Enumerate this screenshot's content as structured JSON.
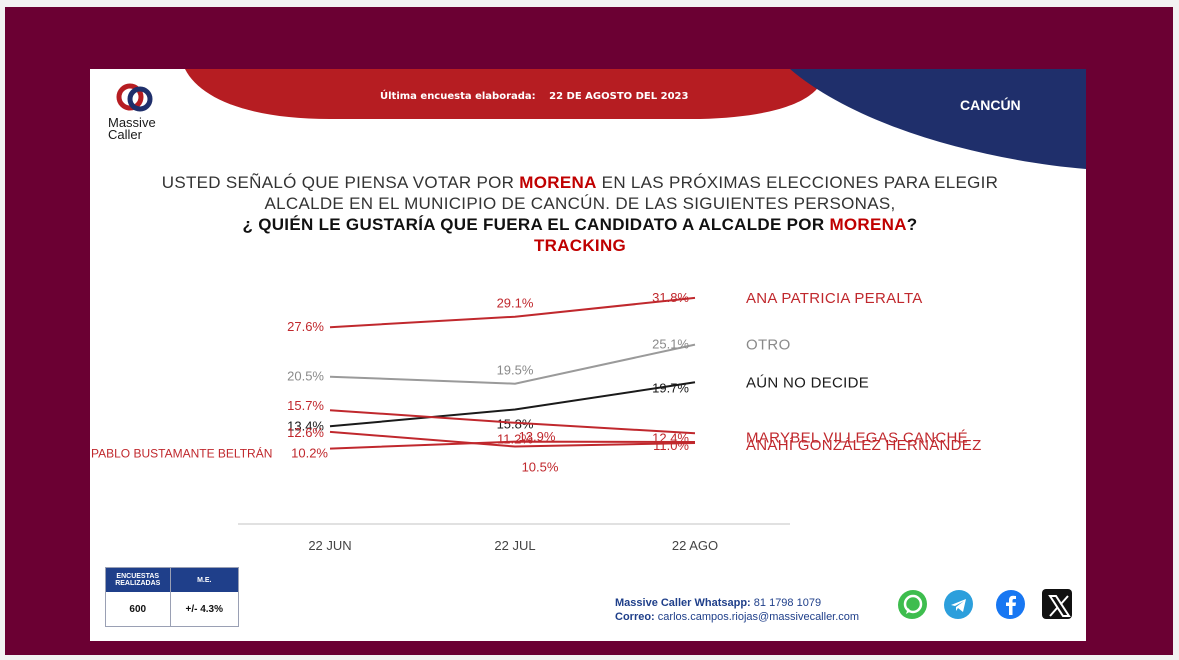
{
  "header": {
    "brand_line1": "Massive",
    "brand_line2": "Caller",
    "survey_label": "Última encuesta elaborada:",
    "survey_date": "22 DE AGOSTO DEL 2023",
    "city": "CANCÚN"
  },
  "question": {
    "line1_pre": "USTED SEÑALÓ QUE PIENSA VOTAR POR ",
    "party": "MORENA",
    "line1_post": " EN LAS PRÓXIMAS ELECCIONES PARA ELEGIR",
    "line2": "ALCALDE EN EL MUNICIPIO DE CANCÚN. DE LAS SIGUIENTES PERSONAS,",
    "line3_pre": "¿ QUIÉN LE GUSTARÍA QUE FUERA EL CANDIDATO A ALCALDE POR ",
    "line3_post": "?",
    "subtitle": "TRACKING"
  },
  "chart_data": {
    "type": "line",
    "categories": [
      "22 JUN",
      "22 JUL",
      "22 AGO"
    ],
    "series": [
      {
        "name": "ANA PATRICIA PERALTA",
        "values": [
          27.6,
          29.1,
          31.8
        ],
        "labels": [
          "27.6%",
          "29.1%",
          "31.8%"
        ],
        "color": "#c0282d"
      },
      {
        "name": "OTRO",
        "values": [
          20.5,
          19.5,
          25.1
        ],
        "labels": [
          "20.5%",
          "19.5%",
          "25.1%"
        ],
        "color": "#9a9a9a"
      },
      {
        "name": "AÚN NO DECIDE",
        "values": [
          13.4,
          15.8,
          19.7
        ],
        "labels": [
          "13.4%",
          "15.8%",
          "19.7%"
        ],
        "color": "#1a1a1a"
      },
      {
        "name": "MARYBEL VILLEGAS CANCHÉ",
        "values": [
          15.7,
          13.9,
          12.4
        ],
        "labels": [
          "15.7%",
          "13.9%",
          "12.4%"
        ],
        "color": "#c0282d"
      },
      {
        "name": "ANAHÍ GONZÁLEZ HERNÁNDEZ",
        "values": [
          12.6,
          10.5,
          11.0
        ],
        "labels": [
          "12.6%",
          "10.5%",
          "11.0%"
        ],
        "color": "#c0282d"
      },
      {
        "name": "PABLO BUSTAMANTE BELTRÁN",
        "values": [
          10.2,
          11.2,
          null
        ],
        "labels": [
          "10.2%",
          "11.2%",
          ""
        ],
        "color": "#c0282d"
      }
    ],
    "ylim": [
      9,
      32.5
    ]
  },
  "footer": {
    "surveys_header": "ENCUESTAS REALIZADAS",
    "me_header": "M.E.",
    "surveys_value": "600",
    "me_value": "+/- 4.3%",
    "whatsapp_label": "Massive Caller Whatsapp:",
    "whatsapp_number": "81 1798 1079",
    "email_label": "Correo:",
    "email": "carlos.campos.riojas@massivecaller.com"
  },
  "colors": {
    "red": "#c0282d",
    "blue": "#1f3f8a",
    "frame": "#6b0033"
  },
  "icons": [
    "whatsapp-icon",
    "telegram-icon",
    "facebook-icon",
    "x-icon"
  ]
}
